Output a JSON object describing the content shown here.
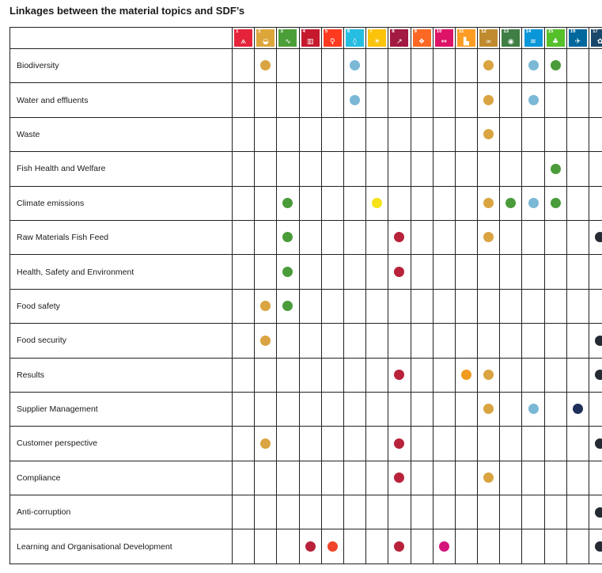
{
  "title": "Linkages between the material topics and SDF’s",
  "sdg_icons": [
    {
      "num": "1",
      "icon": "people-icon",
      "glyph": "ѧ",
      "color": "#e5243b"
    },
    {
      "num": "2",
      "icon": "bowl-icon",
      "glyph": "◒",
      "color": "#dda63a"
    },
    {
      "num": "3",
      "icon": "heartbeat-icon",
      "glyph": "∿",
      "color": "#4c9f38"
    },
    {
      "num": "4",
      "icon": "book-icon",
      "glyph": "▥",
      "color": "#c5192d"
    },
    {
      "num": "5",
      "icon": "gender-icon",
      "glyph": "♀",
      "color": "#ff3a21"
    },
    {
      "num": "6",
      "icon": "water-drop-icon",
      "glyph": "◊",
      "color": "#26bde2"
    },
    {
      "num": "7",
      "icon": "sun-icon",
      "glyph": "☀",
      "color": "#fcc30b"
    },
    {
      "num": "8",
      "icon": "growth-chart-icon",
      "glyph": "↗",
      "color": "#a21942"
    },
    {
      "num": "9",
      "icon": "cubes-icon",
      "glyph": "❖",
      "color": "#fd6925"
    },
    {
      "num": "10",
      "icon": "equality-icon",
      "glyph": "⇔",
      "color": "#dd1367"
    },
    {
      "num": "11",
      "icon": "city-icon",
      "glyph": "▙",
      "color": "#fd9d24"
    },
    {
      "num": "12",
      "icon": "infinity-icon",
      "glyph": "∞",
      "color": "#bf8b2e"
    },
    {
      "num": "13",
      "icon": "eye-globe-icon",
      "glyph": "◉",
      "color": "#3f7e44"
    },
    {
      "num": "14",
      "icon": "fish-icon",
      "glyph": "≋",
      "color": "#0a97d9"
    },
    {
      "num": "15",
      "icon": "tree-icon",
      "glyph": "♣",
      "color": "#56c02b"
    },
    {
      "num": "16",
      "icon": "dove-icon",
      "glyph": "✈",
      "color": "#00689d"
    },
    {
      "num": "17",
      "icon": "partnership-icon",
      "glyph": "✿",
      "color": "#19486a"
    }
  ],
  "colors": {
    "c2": "#d9a441",
    "c3": "#4a9b3a",
    "c6": "#7ab8d6",
    "c7": "#f5e219",
    "c8": "#b8223a",
    "c4": "#b8223a",
    "c5": "#f0452b",
    "c10": "#d4147a",
    "c11": "#f09b1f",
    "c12": "#d9a441",
    "c13": "#4a9b3a",
    "c14": "#7ab8d6",
    "c15": "#4a9b3a",
    "c16": "#1e2f5a",
    "c17": "#252a33"
  },
  "rows": [
    {
      "label": "Biodiversity",
      "dots": [
        2,
        6,
        12,
        14,
        15
      ]
    },
    {
      "label": "Water and effluents",
      "dots": [
        6,
        12,
        14
      ]
    },
    {
      "label": "Waste",
      "dots": [
        12
      ]
    },
    {
      "label": "Fish Health and Welfare",
      "dots": [
        15
      ]
    },
    {
      "label": "Climate emissions",
      "dots": [
        3,
        7,
        12,
        13,
        14,
        15
      ]
    },
    {
      "label": "Raw Materials Fish Feed",
      "dots": [
        3,
        8,
        12,
        17
      ]
    },
    {
      "label": "Health, Safety and Environment",
      "dots": [
        3,
        8
      ]
    },
    {
      "label": "Food safety",
      "dots": [
        2,
        3
      ]
    },
    {
      "label": "Food security",
      "dots": [
        2,
        17
      ]
    },
    {
      "label": "Results",
      "dots": [
        8,
        11,
        12,
        17
      ]
    },
    {
      "label": "Supplier Management",
      "dots": [
        12,
        14,
        16
      ]
    },
    {
      "label": "Customer perspective",
      "dots": [
        2,
        8,
        17
      ]
    },
    {
      "label": "Compliance",
      "dots": [
        8,
        12
      ]
    },
    {
      "label": "Anti-corruption",
      "dots": [
        17
      ]
    },
    {
      "label": "Learning and Organisational Development",
      "dots": [
        4,
        5,
        8,
        10,
        17
      ]
    }
  ]
}
